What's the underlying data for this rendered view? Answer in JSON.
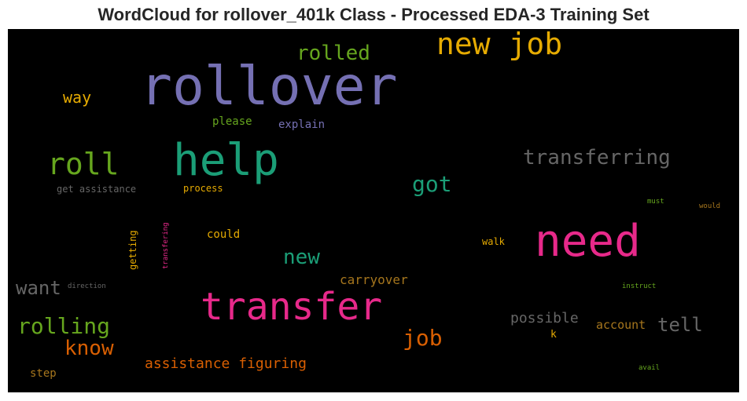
{
  "chart_data": {
    "type": "wordcloud",
    "title": "WordCloud for rollover_401k Class - Processed EDA-3 Training Set",
    "background": "#000000",
    "words": [
      {
        "text": "rollover",
        "color": "#7570b3"
      },
      {
        "text": "help",
        "color": "#1b9e77"
      },
      {
        "text": "need",
        "color": "#e7298a"
      },
      {
        "text": "transfer",
        "color": "#e7298a"
      },
      {
        "text": "new job",
        "color": "#e6ab02"
      },
      {
        "text": "roll",
        "color": "#66a61e"
      },
      {
        "text": "transferring",
        "color": "#666666"
      },
      {
        "text": "rolled",
        "color": "#66a61e"
      },
      {
        "text": "got",
        "color": "#1b9e77"
      },
      {
        "text": "new",
        "color": "#1b9e77"
      },
      {
        "text": "rolling",
        "color": "#66a61e"
      },
      {
        "text": "job",
        "color": "#d95f02"
      },
      {
        "text": "know",
        "color": "#d95f02"
      },
      {
        "text": "want",
        "color": "#666666"
      },
      {
        "text": "tell",
        "color": "#666666"
      },
      {
        "text": "way",
        "color": "#e6ab02"
      },
      {
        "text": "assistance figuring",
        "color": "#d95f02"
      },
      {
        "text": "possible",
        "color": "#666666"
      },
      {
        "text": "carryover",
        "color": "#a6761d"
      },
      {
        "text": "account",
        "color": "#a6761d"
      },
      {
        "text": "explain",
        "color": "#7570b3"
      },
      {
        "text": "please",
        "color": "#66a61e"
      },
      {
        "text": "could",
        "color": "#e6ab02"
      },
      {
        "text": "get assistance",
        "color": "#666666"
      },
      {
        "text": "process",
        "color": "#e6ab02"
      },
      {
        "text": "walk",
        "color": "#e6ab02"
      },
      {
        "text": "step",
        "color": "#a6761d"
      },
      {
        "text": "getting",
        "color": "#e6ab02"
      },
      {
        "text": "transfering",
        "color": "#e7298a"
      },
      {
        "text": "k",
        "color": "#e6ab02"
      },
      {
        "text": "direction",
        "color": "#666666"
      },
      {
        "text": "instruct",
        "color": "#66a61e"
      },
      {
        "text": "must",
        "color": "#66a61e"
      },
      {
        "text": "would",
        "color": "#a6761d"
      },
      {
        "text": "avail",
        "color": "#66a61e"
      }
    ]
  }
}
